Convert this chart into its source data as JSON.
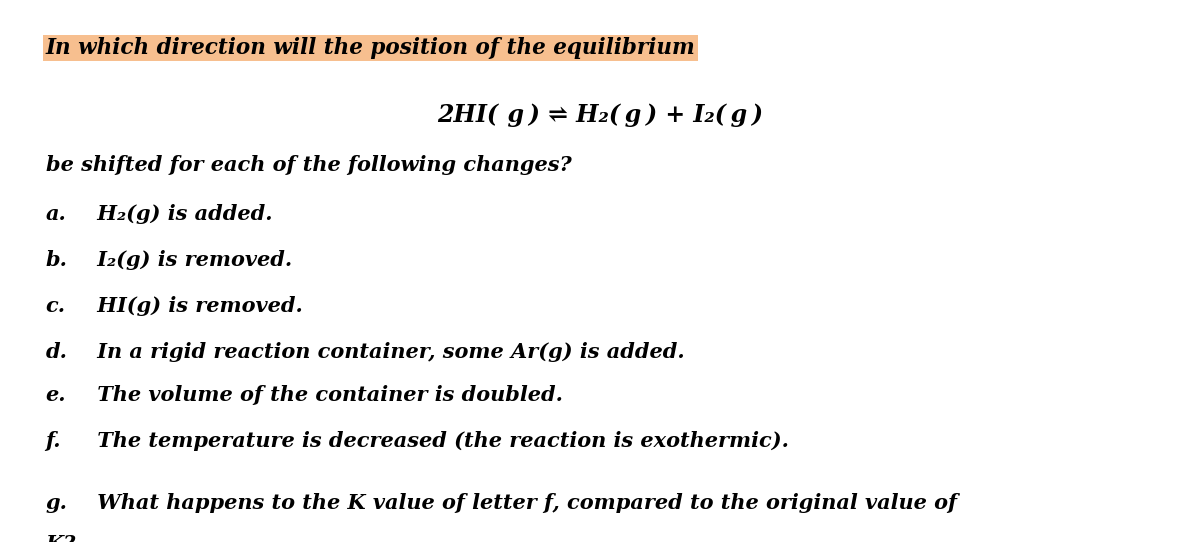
{
  "bg_color": "#ffffff",
  "highlight_color": "#f4a460",
  "title_line": "In which direction will the position of the equilibrium",
  "equation": "2HI( g) ⇌ H₂( g) + I₂( g)",
  "subtitle": "be shifted for each of the following changes?",
  "items": [
    {
      "label": "a.",
      "text": " H₂(g) is added."
    },
    {
      "label": "b.",
      "text": " I₂(g) is removed."
    },
    {
      "label": "c.",
      "text": " HI(g) is removed."
    },
    {
      "label": "d.",
      "text": " In a rigid reaction container, some Ar(g) is added."
    },
    {
      "label": "e.",
      "text": " The volume of the container is doubled."
    },
    {
      "label": "f.",
      "text": " The temperature is decreased (the reaction is exothermic)."
    },
    {
      "label": "g.",
      "text": " What happens to the K value of letter f, compared to the original value of\nK?"
    }
  ],
  "fig_width": 12.0,
  "fig_height": 5.42,
  "dpi": 100
}
